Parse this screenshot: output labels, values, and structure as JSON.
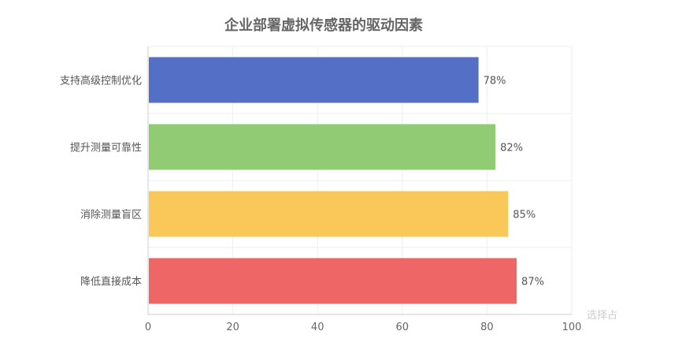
{
  "chart_data": {
    "type": "bar",
    "orientation": "horizontal",
    "title": "企业部署虚拟传感器的驱动因素",
    "categories": [
      "支持高级控制优化",
      "提升测量可靠性",
      "消除测量盲区",
      "降低直接成本"
    ],
    "values": [
      78,
      82,
      85,
      87
    ],
    "data_labels": [
      "78%",
      "82%",
      "85%",
      "87%"
    ],
    "colors": [
      "#5470c6",
      "#91cc75",
      "#fac858",
      "#ee6666"
    ],
    "xlim": [
      0,
      100
    ],
    "xticks": [
      "0",
      "20",
      "40",
      "60",
      "80",
      "100"
    ],
    "grid": true
  },
  "watermark": "选择占"
}
